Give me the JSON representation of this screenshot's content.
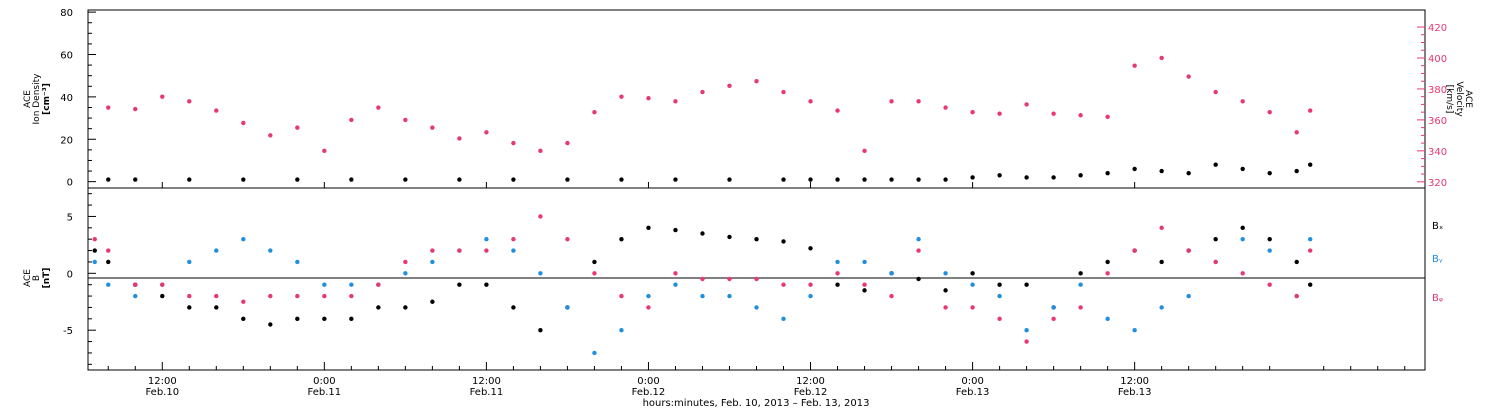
{
  "colors": {
    "black": "#000000",
    "pink": "#e8386d",
    "blue": "#1f8fe0",
    "axis": "#000000"
  },
  "chart_data": [
    {
      "type": "scatter",
      "panel": "top",
      "ylabel_left": [
        "ACE",
        "Ion Density",
        "[cm⁻³]"
      ],
      "ylabel_right": [
        "ACE",
        "Velocity",
        "[km/s]"
      ],
      "ylim_left": [
        -3,
        81
      ],
      "ylim_right": [
        316,
        431
      ],
      "yticks_left": [
        "0",
        "20",
        "40",
        "60",
        "80"
      ],
      "yticks_right": [
        "320",
        "340",
        "360",
        "380",
        "400",
        "420"
      ],
      "series": [
        {
          "name": "",
          "axis": "left",
          "color": "#000000",
          "x": [
            8,
            10,
            14,
            18,
            22,
            26,
            30,
            34,
            38,
            42,
            46,
            50,
            54,
            58,
            60,
            62,
            64,
            66,
            68,
            70,
            72,
            74,
            76,
            78,
            80,
            82,
            84,
            86,
            88,
            90,
            92,
            94,
            96,
            97
          ],
          "y": [
            1,
            1,
            1,
            1,
            1,
            1,
            1,
            1,
            1,
            1,
            1,
            1,
            1,
            1,
            1,
            1,
            1,
            1,
            1,
            1,
            2,
            3,
            2,
            2,
            3,
            4,
            6,
            5,
            4,
            8,
            6,
            4,
            5,
            8
          ]
        },
        {
          "name": "",
          "axis": "right",
          "color": "#e8386d",
          "x": [
            8,
            10,
            12,
            14,
            16,
            18,
            20,
            22,
            24,
            26,
            28,
            30,
            32,
            34,
            36,
            38,
            40,
            42,
            44,
            46,
            48,
            50,
            52,
            54,
            56,
            58,
            60,
            62,
            64,
            66,
            68,
            70,
            72,
            74,
            76,
            78,
            80,
            82,
            84,
            86,
            88,
            90,
            92,
            94,
            96,
            97
          ],
          "y": [
            368,
            367,
            375,
            372,
            366,
            358,
            350,
            355,
            340,
            360,
            368,
            360,
            355,
            348,
            352,
            345,
            340,
            345,
            365,
            375,
            374,
            372,
            378,
            382,
            385,
            378,
            372,
            366,
            340,
            372,
            372,
            368,
            365,
            364,
            370,
            364,
            363,
            362,
            395,
            400,
            388,
            378,
            372,
            365,
            352,
            366
          ]
        }
      ]
    },
    {
      "type": "scatter",
      "panel": "bottom",
      "ylabel_left": [
        "ACE",
        "B",
        "[nT]"
      ],
      "ylim": [
        -8.5,
        7.5
      ],
      "yticks": [
        "-5",
        "0",
        "5"
      ],
      "xlabel": "hours:minutes, Feb. 10, 2013 – Feb. 13, 2013",
      "xlim": [
        6.5,
        105.5
      ],
      "xticks": [
        {
          "x": 12,
          "time": "12:00",
          "date": "Feb.10"
        },
        {
          "x": 24,
          "time": "0:00",
          "date": "Feb.11"
        },
        {
          "x": 36,
          "time": "12:00",
          "date": "Feb.11"
        },
        {
          "x": 48,
          "time": "0:00",
          "date": "Feb.12"
        },
        {
          "x": 60,
          "time": "12:00",
          "date": "Feb.12"
        },
        {
          "x": 72,
          "time": "0:00",
          "date": "Feb.13"
        },
        {
          "x": 84,
          "time": "12:00",
          "date": "Feb.13"
        }
      ],
      "legend_position": "right",
      "series": [
        {
          "name": "Bₓ",
          "color": "#000000",
          "x": [
            7,
            8,
            10,
            12,
            14,
            16,
            18,
            20,
            22,
            24,
            26,
            28,
            30,
            32,
            34,
            36,
            38,
            40,
            42,
            44,
            46,
            48,
            50,
            52,
            54,
            56,
            58,
            60,
            62,
            64,
            66,
            68,
            70,
            72,
            74,
            76,
            78,
            80,
            82,
            84,
            86,
            88,
            90,
            92,
            94,
            96,
            97
          ],
          "y": [
            2,
            1,
            -1,
            -2,
            -3,
            -3,
            -4,
            -4.5,
            -4,
            -4,
            -4,
            -3,
            -3,
            -2.5,
            -1,
            -1,
            -3,
            -5,
            -3,
            1,
            3,
            4,
            3.8,
            3.5,
            3.2,
            3,
            2.8,
            2.2,
            -1,
            -1.5,
            0,
            -0.5,
            -1.5,
            0,
            -1,
            -1,
            -3,
            0,
            1,
            2,
            1,
            2,
            3,
            4,
            3,
            1,
            -1
          ]
        },
        {
          "name": "Bᵧ",
          "color": "#1f8fe0",
          "x": [
            7,
            8,
            10,
            12,
            14,
            16,
            18,
            20,
            22,
            24,
            26,
            28,
            30,
            32,
            34,
            36,
            38,
            40,
            42,
            44,
            46,
            48,
            50,
            52,
            54,
            56,
            58,
            60,
            62,
            64,
            66,
            68,
            70,
            72,
            74,
            76,
            78,
            80,
            82,
            84,
            86,
            88,
            90,
            92,
            94,
            96,
            97
          ],
          "y": [
            1,
            -1,
            -2,
            -1,
            1,
            2,
            3,
            2,
            1,
            -1,
            -1,
            -1,
            0,
            1,
            2,
            3,
            2,
            0,
            -3,
            -7,
            -5,
            -2,
            -1,
            -2,
            -2,
            -3,
            -4,
            -2,
            1,
            1,
            0,
            3,
            0,
            -1,
            -2,
            -5,
            -3,
            -1,
            -4,
            -5,
            -3,
            -2,
            1,
            3,
            2,
            -2,
            3
          ]
        },
        {
          "name": "Bᵩ",
          "color": "#e8386d",
          "x": [
            7,
            8,
            10,
            12,
            14,
            16,
            18,
            20,
            22,
            24,
            26,
            28,
            30,
            32,
            34,
            36,
            38,
            40,
            42,
            44,
            46,
            48,
            50,
            52,
            54,
            56,
            58,
            60,
            62,
            64,
            66,
            68,
            70,
            72,
            74,
            76,
            78,
            80,
            82,
            84,
            86,
            88,
            90,
            92,
            94,
            96,
            97
          ],
          "y": [
            3,
            2,
            -1,
            -1,
            -2,
            -2,
            -2.5,
            -2,
            -2,
            -2,
            -2,
            -1,
            1,
            2,
            2,
            2,
            3,
            5,
            3,
            0,
            -2,
            -3,
            0,
            -0.5,
            -0.5,
            -0.5,
            -1,
            -1,
            0,
            -1,
            -2,
            2,
            -3,
            -3,
            -4,
            -6,
            -4,
            -3,
            0,
            2,
            4,
            2,
            1,
            0,
            -1,
            -2,
            2
          ]
        }
      ]
    }
  ]
}
